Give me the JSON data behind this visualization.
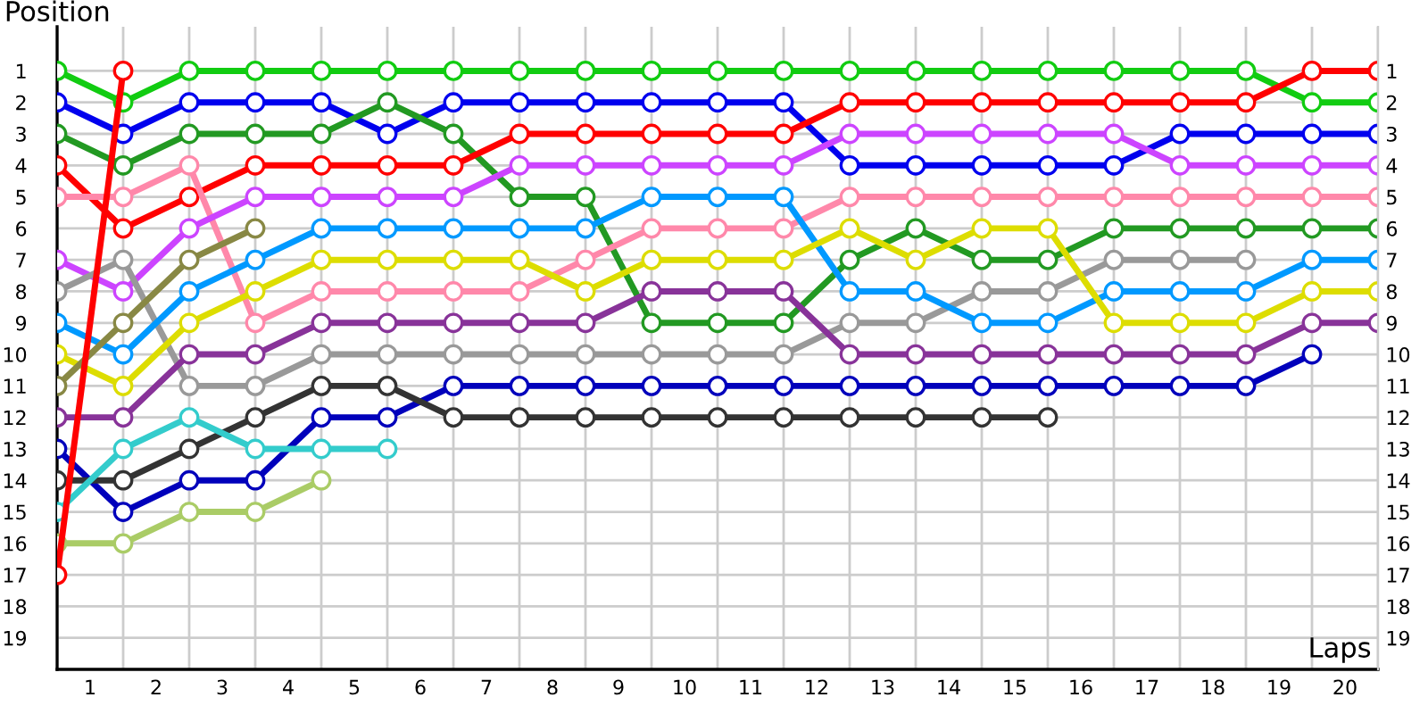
{
  "chart_data": {
    "type": "line",
    "xlabel": "Laps",
    "ylabel": "Position",
    "x": [
      0,
      1,
      2,
      3,
      4,
      5,
      6,
      7,
      8,
      9,
      10,
      11,
      12,
      13,
      14,
      15,
      16,
      17,
      18,
      19,
      20
    ],
    "xlim": [
      0,
      20
    ],
    "ylim": [
      20,
      -0.4
    ],
    "y2lim": [
      20,
      -0.4
    ],
    "xticks": [
      {
        "value": 0,
        "label": null
      },
      {
        "value": 0.5,
        "label": "1"
      },
      {
        "value": 1,
        "label": null
      },
      {
        "value": 1.5,
        "label": "2"
      },
      {
        "value": 2,
        "label": null
      },
      {
        "value": 2.5,
        "label": "3"
      },
      {
        "value": 3,
        "label": null
      },
      {
        "value": 3.5,
        "label": "4"
      },
      {
        "value": 4,
        "label": null
      },
      {
        "value": 4.5,
        "label": "5"
      },
      {
        "value": 5,
        "label": null
      },
      {
        "value": 5.5,
        "label": "6"
      },
      {
        "value": 6,
        "label": null
      },
      {
        "value": 6.5,
        "label": "7"
      },
      {
        "value": 7,
        "label": null
      },
      {
        "value": 7.5,
        "label": "8"
      },
      {
        "value": 8,
        "label": null
      },
      {
        "value": 8.5,
        "label": "9"
      },
      {
        "value": 9,
        "label": null
      },
      {
        "value": 9.5,
        "label": "10"
      },
      {
        "value": 10,
        "label": null
      },
      {
        "value": 10.5,
        "label": "11"
      },
      {
        "value": 11,
        "label": null
      },
      {
        "value": 11.5,
        "label": "12"
      },
      {
        "value": 12,
        "label": null
      },
      {
        "value": 12.5,
        "label": "13"
      },
      {
        "value": 13,
        "label": null
      },
      {
        "value": 13.5,
        "label": "14"
      },
      {
        "value": 14,
        "label": null
      },
      {
        "value": 14.5,
        "label": "15"
      },
      {
        "value": 15,
        "label": null
      },
      {
        "value": 15.5,
        "label": "16"
      },
      {
        "value": 16,
        "label": null
      },
      {
        "value": 16.5,
        "label": "17"
      },
      {
        "value": 17,
        "label": null
      },
      {
        "value": 17.5,
        "label": "18"
      },
      {
        "value": 18,
        "label": null
      },
      {
        "value": 18.5,
        "label": "19"
      },
      {
        "value": 19,
        "label": null
      },
      {
        "value": 19.5,
        "label": "20"
      },
      {
        "value": 20,
        "label": null
      }
    ],
    "yticks": [
      1,
      2,
      3,
      4,
      5,
      6,
      7,
      8,
      9,
      10,
      11,
      12,
      13,
      14,
      15,
      16,
      17,
      18,
      19
    ],
    "y2ticks": [
      1,
      2,
      3,
      4,
      5,
      6,
      7,
      8,
      9,
      10,
      11,
      12,
      13,
      14,
      15,
      16,
      17,
      18,
      19
    ],
    "grid": true,
    "marker": "circle",
    "line_style": "solid",
    "series": [
      {
        "color": "#11cc11",
        "values": [
          1,
          2,
          1,
          1,
          1,
          1,
          1,
          1,
          1,
          1,
          1,
          1,
          1,
          1,
          1,
          1,
          1,
          1,
          1,
          2,
          2
        ]
      },
      {
        "color": "#0000ee",
        "values": [
          2,
          3,
          2,
          2,
          2,
          3,
          2,
          2,
          2,
          2,
          2,
          2,
          4,
          4,
          4,
          4,
          4,
          3,
          3,
          3,
          3
        ]
      },
      {
        "color": "#229922",
        "values": [
          3,
          4,
          3,
          3,
          3,
          2,
          3,
          5,
          5,
          9,
          9,
          9,
          7,
          6,
          7,
          7,
          6,
          6,
          6,
          6,
          6
        ]
      },
      {
        "color": "#ff0000",
        "values": [
          4,
          6,
          5,
          4,
          4,
          4,
          4,
          3,
          3,
          3,
          3,
          3,
          2,
          2,
          2,
          2,
          2,
          2,
          2,
          1,
          1
        ]
      },
      {
        "color": "#ff88aa",
        "values": [
          5,
          5,
          4,
          9,
          8,
          8,
          8,
          8,
          7,
          6,
          6,
          6,
          5,
          5,
          5,
          5,
          5,
          5,
          5,
          5,
          5
        ]
      },
      {
        "color": "#cc44ff",
        "values": [
          7,
          8,
          6,
          5,
          5,
          5,
          5,
          4,
          4,
          4,
          4,
          4,
          3,
          3,
          3,
          3,
          3,
          4,
          4,
          4,
          4
        ]
      },
      {
        "color": "#999999",
        "values": [
          8,
          7,
          11,
          11,
          10,
          10,
          10,
          10,
          10,
          10,
          10,
          10,
          9,
          9,
          8,
          8,
          7,
          7,
          7,
          null,
          null
        ]
      },
      {
        "color": "#0099ff",
        "values": [
          9,
          10,
          8,
          7,
          6,
          6,
          6,
          6,
          6,
          5,
          5,
          5,
          8,
          8,
          9,
          9,
          8,
          8,
          8,
          7,
          7
        ]
      },
      {
        "color": "#dddd00",
        "values": [
          10,
          11,
          9,
          8,
          7,
          7,
          7,
          7,
          8,
          7,
          7,
          7,
          6,
          7,
          6,
          6,
          9,
          9,
          9,
          8,
          8
        ]
      },
      {
        "color": "#888844",
        "values": [
          11,
          9,
          7,
          6,
          null,
          null,
          null,
          null,
          null,
          null,
          null,
          null,
          null,
          null,
          null,
          null,
          null,
          null,
          null,
          null,
          null
        ]
      },
      {
        "color": "#883399",
        "values": [
          12,
          12,
          10,
          10,
          9,
          9,
          9,
          9,
          9,
          8,
          8,
          8,
          10,
          10,
          10,
          10,
          10,
          10,
          10,
          9,
          9
        ]
      },
      {
        "color": "#0000bb",
        "values": [
          13,
          15,
          14,
          14,
          12,
          12,
          11,
          11,
          11,
          11,
          11,
          11,
          11,
          11,
          11,
          11,
          11,
          11,
          11,
          10,
          null
        ]
      },
      {
        "color": "#333333",
        "values": [
          14,
          14,
          13,
          12,
          11,
          11,
          12,
          12,
          12,
          12,
          12,
          12,
          12,
          12,
          12,
          12,
          null,
          null,
          null,
          null,
          null
        ]
      },
      {
        "color": "#33cccc",
        "values": [
          15,
          13,
          12,
          13,
          13,
          13,
          null,
          null,
          null,
          null,
          null,
          null,
          null,
          null,
          null,
          null,
          null,
          null,
          null,
          null,
          null
        ]
      },
      {
        "color": "#aacc66",
        "values": [
          16,
          16,
          15,
          15,
          14,
          null,
          null,
          null,
          null,
          null,
          null,
          null,
          null,
          null,
          null,
          null,
          null,
          null,
          null,
          null,
          null
        ]
      },
      {
        "color": "#ff0000",
        "values": [
          17,
          1,
          null,
          null,
          null,
          null,
          null,
          null,
          null,
          null,
          null,
          null,
          null,
          null,
          null,
          null,
          null,
          null,
          null,
          null,
          null
        ]
      }
    ]
  }
}
